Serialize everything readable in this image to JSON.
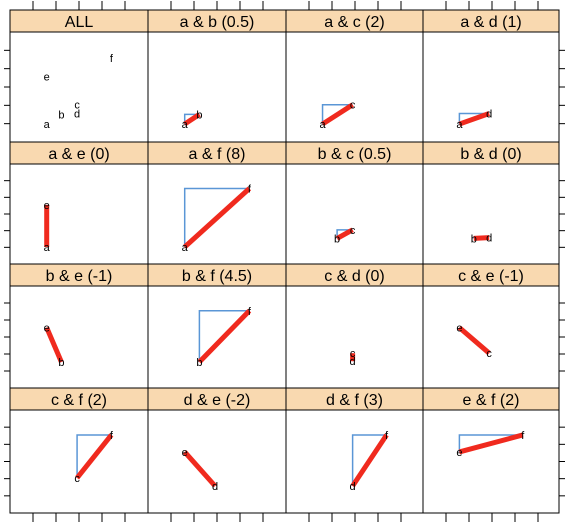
{
  "chart_data": {
    "type": "scatter",
    "layout": {
      "columns": 4,
      "rows": 4
    },
    "colors": {
      "strip": "#f9d9b0",
      "diagonal": "#f02a1e",
      "corner": "#5a96d6"
    },
    "xlim": [
      0,
      10
    ],
    "ylim": [
      0,
      10
    ],
    "points": [
      {
        "name": "a",
        "x": 1.5,
        "y": 0.9
      },
      {
        "name": "b",
        "x": 3.0,
        "y": 2.0
      },
      {
        "name": "c",
        "x": 4.6,
        "y": 3.1
      },
      {
        "name": "d",
        "x": 4.6,
        "y": 2.1
      },
      {
        "name": "e",
        "x": 1.5,
        "y": 6.3
      },
      {
        "name": "f",
        "x": 8.1,
        "y": 8.4
      }
    ],
    "panels": [
      {
        "title": "ALL",
        "pair": null
      },
      {
        "title": "a & b  (0.5)",
        "pair": [
          "a",
          "b"
        ]
      },
      {
        "title": "a & c  (2)",
        "pair": [
          "a",
          "c"
        ]
      },
      {
        "title": "a & d  (1)",
        "pair": [
          "a",
          "d"
        ]
      },
      {
        "title": "a & e  (0)",
        "pair": [
          "a",
          "e"
        ]
      },
      {
        "title": "a & f  (8)",
        "pair": [
          "a",
          "f"
        ]
      },
      {
        "title": "b & c  (0.5)",
        "pair": [
          "b",
          "c"
        ]
      },
      {
        "title": "b & d  (0)",
        "pair": [
          "b",
          "d"
        ]
      },
      {
        "title": "b & e  (-1)",
        "pair": [
          "b",
          "e"
        ]
      },
      {
        "title": "b & f  (4.5)",
        "pair": [
          "b",
          "f"
        ]
      },
      {
        "title": "c & d  (0)",
        "pair": [
          "c",
          "d"
        ]
      },
      {
        "title": "c & e  (-1)",
        "pair": [
          "c",
          "e"
        ]
      },
      {
        "title": "c & f  (2)",
        "pair": [
          "c",
          "f"
        ]
      },
      {
        "title": "d & e  (-2)",
        "pair": [
          "d",
          "e"
        ]
      },
      {
        "title": "d & f  (3)",
        "pair": [
          "d",
          "f"
        ]
      },
      {
        "title": "e & f  (2)",
        "pair": [
          "e",
          "f"
        ]
      }
    ]
  }
}
